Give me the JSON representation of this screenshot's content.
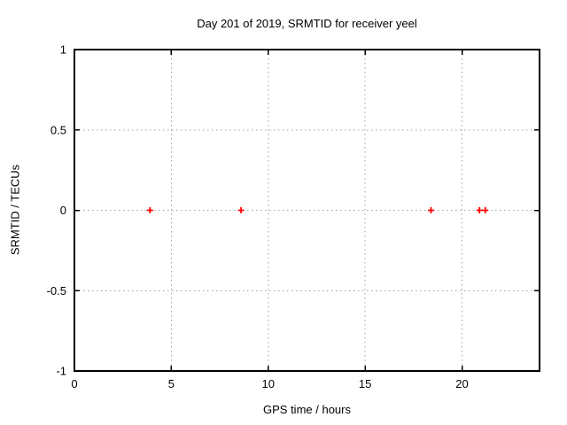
{
  "chart_data": {
    "type": "scatter",
    "title": "Day 201 of 2019, SRMTID for receiver yeel",
    "xlabel": "GPS time / hours",
    "ylabel": "SRMTID / TECUs",
    "xlim": [
      0,
      24
    ],
    "ylim": [
      -1,
      1
    ],
    "xticks": [
      0,
      5,
      10,
      15,
      20
    ],
    "yticks": [
      -1,
      -0.5,
      0,
      0.5,
      1
    ],
    "grid": true,
    "legend_position": "none",
    "series": [
      {
        "name": "SRMTID",
        "marker": "plus",
        "color": "#ff0000",
        "x": [
          3.9,
          8.6,
          18.4,
          20.9,
          21.2
        ],
        "y": [
          0,
          0,
          0,
          0,
          0
        ]
      }
    ],
    "style": {
      "background": "#ffffff",
      "border_color": "#000000",
      "grid_color": "#a0a0a0",
      "text_color": "#000000"
    }
  }
}
